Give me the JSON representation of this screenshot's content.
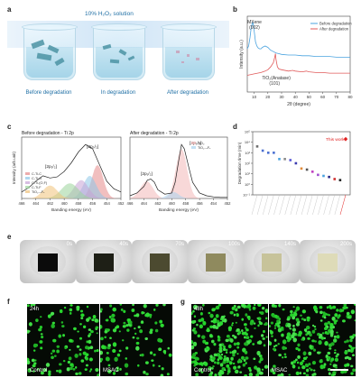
{
  "panels": {
    "a": {
      "label": "a",
      "solution": "10% H₂O₂ solution",
      "captions": [
        "Before degradation",
        "In degradation",
        "After degradation"
      ]
    },
    "b": {
      "label": "b"
    },
    "c": {
      "label": "c"
    },
    "d": {
      "label": "d"
    },
    "e": {
      "label": "e",
      "times": [
        "0s",
        "40s",
        "70s",
        "100s",
        "140s",
        "200s"
      ]
    },
    "f": {
      "label": "f",
      "time": "24h",
      "left": "Control",
      "right": "MSAC"
    },
    "g": {
      "label": "g",
      "time": "48h",
      "left": "Control",
      "right": "MSAC"
    }
  },
  "colors": {
    "before": "#4aa3df",
    "after": "#e05a5a",
    "fluo": "#33c93a",
    "text_blue": "#1f6fa5"
  },
  "chart_data": [
    {
      "type": "line",
      "panel": "b",
      "xlabel": "2θ (degree)",
      "ylabel": "Intensity (a.u.)",
      "xticks": [
        "10",
        "20",
        "30",
        "40",
        "50",
        "60",
        "70",
        "80"
      ],
      "xlim": [
        5,
        80
      ],
      "legend": [
        "Before degradation",
        "After degradation"
      ],
      "annotations": [
        "MXene",
        "(002)",
        "TiO₂(Anatase)",
        "(101)"
      ],
      "series": [
        {
          "name": "Before degradation",
          "x": [
            5,
            6,
            7,
            8,
            9,
            10,
            11,
            12,
            13,
            14,
            15,
            16,
            18,
            20,
            22,
            24,
            26,
            28,
            30,
            35,
            40,
            45,
            50,
            55,
            60,
            65,
            70,
            75,
            80
          ],
          "y": [
            0.62,
            0.66,
            0.78,
            0.95,
            1.0,
            0.88,
            0.72,
            0.66,
            0.63,
            0.62,
            0.62,
            0.64,
            0.66,
            0.64,
            0.6,
            0.58,
            0.56,
            0.55,
            0.54,
            0.53,
            0.53,
            0.52,
            0.52,
            0.51,
            0.51,
            0.51,
            0.5,
            0.5,
            0.5
          ]
        },
        {
          "name": "After degradation",
          "x": [
            5,
            10,
            15,
            18,
            20,
            22,
            24,
            25,
            25.5,
            26,
            27,
            28,
            30,
            35,
            38,
            40,
            45,
            48,
            50,
            55,
            60,
            65,
            70,
            75,
            80
          ],
          "y": [
            0.24,
            0.26,
            0.28,
            0.3,
            0.32,
            0.36,
            0.42,
            0.5,
            0.55,
            0.46,
            0.36,
            0.33,
            0.32,
            0.3,
            0.31,
            0.3,
            0.29,
            0.3,
            0.29,
            0.28,
            0.28,
            0.27,
            0.27,
            0.27,
            0.27
          ]
        }
      ]
    },
    {
      "type": "line",
      "panel": "c-left",
      "title": "Before degradation - Ti 2p",
      "xlabel": "Banding energy (eV)",
      "ylabel": "Intensity (arb.unit)",
      "xticks": [
        "466",
        "464",
        "462",
        "460",
        "458",
        "456",
        "454",
        "452"
      ],
      "xlim": [
        466,
        452
      ],
      "peak_labels": [
        "[2p₁/₂]",
        "[2p₃/₂]"
      ],
      "legend": [
        "C-Ti-C",
        "C-Ti-O",
        "C-Ti-(O,F)",
        "C-Ti-F",
        "TiO₂₋ₓFₓ"
      ],
      "series": [
        {
          "name": "envelope",
          "x": [
            466,
            465,
            464,
            463,
            462,
            461,
            460,
            459,
            458,
            457,
            456,
            455,
            454,
            453,
            452
          ],
          "y": [
            0.12,
            0.2,
            0.32,
            0.42,
            0.38,
            0.4,
            0.5,
            0.66,
            0.86,
            1.0,
            0.92,
            0.62,
            0.32,
            0.18,
            0.12
          ]
        }
      ]
    },
    {
      "type": "line",
      "panel": "c-right",
      "title": "After degradation - Ti 2p",
      "xlabel": "Banding energy (eV)",
      "xticks": [
        "466",
        "464",
        "462",
        "460",
        "458",
        "456",
        "454",
        "452"
      ],
      "xlim": [
        466,
        452
      ],
      "peak_labels": [
        "[2p₁/₂]",
        "[2p₃/₂]"
      ],
      "legend": [
        "TiO₂",
        "TiO₂₋ₓFₓ"
      ],
      "series": [
        {
          "name": "envelope",
          "x": [
            466,
            465,
            464,
            463.5,
            463,
            462.5,
            462,
            461,
            460,
            459.5,
            459,
            458.6,
            458.2,
            457.5,
            457,
            456,
            455,
            454,
            453,
            452
          ],
          "y": [
            0.05,
            0.1,
            0.22,
            0.34,
            0.36,
            0.3,
            0.16,
            0.08,
            0.1,
            0.3,
            0.7,
            1.0,
            0.92,
            0.55,
            0.3,
            0.1,
            0.05,
            0.03,
            0.02,
            0.02
          ]
        }
      ]
    },
    {
      "type": "scatter",
      "panel": "d",
      "ylabel": "Degradation time (min)",
      "yscale": "log",
      "yticks": [
        "10⁻¹",
        "10⁰",
        "10¹",
        "10²",
        "10³",
        "10⁴",
        "10⁵"
      ],
      "ylim_exp": [
        -1,
        5
      ],
      "annotation": "This work",
      "series": [
        {
          "name": "references",
          "colors": [
            "#6e6e6e",
            "#4a6fd1",
            "#4a6fd1",
            "#4a6fd1",
            "#4aa3df",
            "#8a8a8a",
            "#5a5ad6",
            "#3b3bb0",
            "#e08a3a",
            "#555",
            "#c040c0",
            "#a050d0",
            "#4aa3df",
            "#2a2a8a",
            "#d03030",
            "#222"
          ],
          "y": [
            3.6,
            3.2,
            3.0,
            3.0,
            2.4,
            2.4,
            2.3,
            2.0,
            1.5,
            1.4,
            1.2,
            0.9,
            0.8,
            0.7,
            0.5,
            0.4
          ]
        },
        {
          "name": "This work",
          "y": [
            4.3
          ]
        }
      ]
    }
  ]
}
